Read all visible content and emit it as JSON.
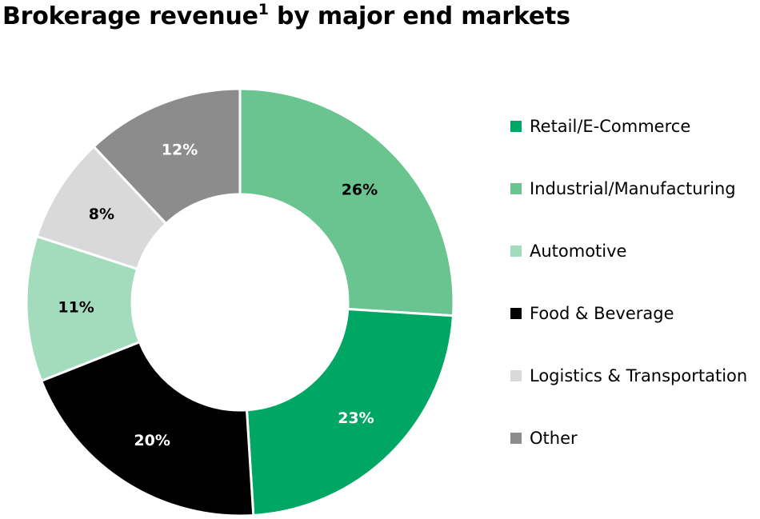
{
  "chart_data": {
    "type": "pie",
    "variant": "donut",
    "title": "Brokerage revenue",
    "title_superscript": "1",
    "title_suffix": " by major end markets",
    "legend_position": "right",
    "slices": [
      {
        "name": "Industrial/Manufacturing",
        "value": 26,
        "label": "26%",
        "color": "#6ac48f",
        "label_color": "#000000"
      },
      {
        "name": "Retail/E-Commerce",
        "value": 23,
        "label": "23%",
        "color": "#00a764",
        "label_color": "#ffffff"
      },
      {
        "name": "Food & Beverage",
        "value": 20,
        "label": "20%",
        "color": "#000000",
        "label_color": "#ffffff"
      },
      {
        "name": "Automotive",
        "value": 11,
        "label": "11%",
        "color": "#a3dcbd",
        "label_color": "#000000"
      },
      {
        "name": "Logistics & Transportation",
        "value": 8,
        "label": "8%",
        "color": "#d9d9d9",
        "label_color": "#000000"
      },
      {
        "name": "Other",
        "value": 12,
        "label": "12%",
        "color": "#8c8c8c",
        "label_color": "#ffffff"
      }
    ],
    "legend": [
      {
        "label": "Retail/E-Commerce",
        "color": "#00a764"
      },
      {
        "label": "Industrial/Manufacturing",
        "color": "#6ac48f"
      },
      {
        "label": "Automotive",
        "color": "#a3dcbd"
      },
      {
        "label": "Food & Beverage",
        "color": "#000000"
      },
      {
        "label": "Logistics & Transportation",
        "color": "#d9d9d9"
      },
      {
        "label": "Other",
        "color": "#8c8c8c"
      }
    ]
  }
}
